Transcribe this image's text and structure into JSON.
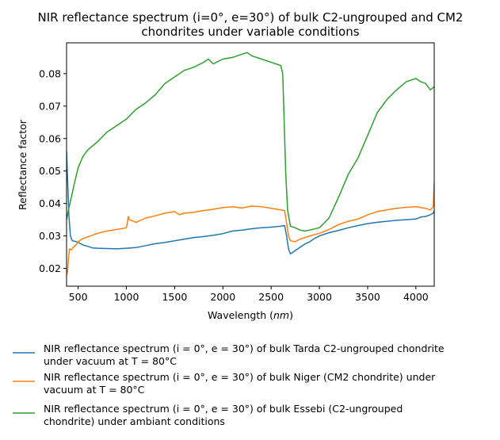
{
  "chart_data": {
    "type": "line",
    "title_lines": [
      "NIR reflectance spectrum (i=0°, e=30°) of bulk C2-ungrouped and CM2",
      "chondrites under variable conditions"
    ],
    "xlabel": "Wavelength",
    "xlabel_unit": "nm",
    "ylabel": "Reflectance factor",
    "xlim": [
      380,
      4190
    ],
    "ylim": [
      0.0145,
      0.0895
    ],
    "xticks": [
      500,
      1000,
      1500,
      2000,
      2500,
      3000,
      3500,
      4000
    ],
    "yticks": [
      0.02,
      0.03,
      0.04,
      0.05,
      0.06,
      0.07,
      0.08
    ],
    "xtick_labels": [
      "500",
      "1000",
      "1500",
      "2000",
      "2500",
      "3000",
      "3500",
      "4000"
    ],
    "ytick_labels": [
      "0.02",
      "0.03",
      "0.04",
      "0.05",
      "0.06",
      "0.07",
      "0.08"
    ],
    "grid": false,
    "legend_position": "below",
    "series": [
      {
        "name_lines": [
          "NIR reflectance spectrum (i = 0°, e = 30°) of bulk Tarda C2-ungrouped chondrite",
          "under vacuum at T = 80°C"
        ],
        "color": "#1f77b4",
        "points": [
          [
            380,
            0.056
          ],
          [
            390,
            0.048
          ],
          [
            405,
            0.036
          ],
          [
            420,
            0.03
          ],
          [
            440,
            0.0285
          ],
          [
            470,
            0.0283
          ],
          [
            500,
            0.028
          ],
          [
            550,
            0.0272
          ],
          [
            600,
            0.0268
          ],
          [
            650,
            0.0263
          ],
          [
            700,
            0.0262
          ],
          [
            800,
            0.0261
          ],
          [
            900,
            0.026
          ],
          [
            1000,
            0.0262
          ],
          [
            1100,
            0.0264
          ],
          [
            1200,
            0.027
          ],
          [
            1300,
            0.0276
          ],
          [
            1400,
            0.028
          ],
          [
            1500,
            0.0285
          ],
          [
            1600,
            0.029
          ],
          [
            1700,
            0.0295
          ],
          [
            1800,
            0.0298
          ],
          [
            1900,
            0.0302
          ],
          [
            2000,
            0.0307
          ],
          [
            2100,
            0.0315
          ],
          [
            2200,
            0.0318
          ],
          [
            2300,
            0.0322
          ],
          [
            2400,
            0.0325
          ],
          [
            2500,
            0.0327
          ],
          [
            2600,
            0.033
          ],
          [
            2640,
            0.0332
          ],
          [
            2660,
            0.03
          ],
          [
            2680,
            0.026
          ],
          [
            2700,
            0.0245
          ],
          [
            2720,
            0.0248
          ],
          [
            2750,
            0.0255
          ],
          [
            2800,
            0.0265
          ],
          [
            2850,
            0.0275
          ],
          [
            2900,
            0.0282
          ],
          [
            2950,
            0.0292
          ],
          [
            3000,
            0.03
          ],
          [
            3100,
            0.031
          ],
          [
            3200,
            0.0317
          ],
          [
            3300,
            0.0325
          ],
          [
            3400,
            0.0332
          ],
          [
            3500,
            0.0338
          ],
          [
            3600,
            0.0342
          ],
          [
            3700,
            0.0345
          ],
          [
            3800,
            0.0348
          ],
          [
            3900,
            0.035
          ],
          [
            4000,
            0.0352
          ],
          [
            4050,
            0.0358
          ],
          [
            4100,
            0.036
          ],
          [
            4150,
            0.0365
          ],
          [
            4180,
            0.037
          ],
          [
            4190,
            0.0378
          ]
        ]
      },
      {
        "name_lines": [
          "NIR reflectance spectrum (i = 0°, e = 30°) of bulk Niger (CM2 chondrite) under",
          "vacuum at T = 80°C"
        ],
        "color": "#ff7f0e",
        "points": [
          [
            380,
            0.018
          ],
          [
            390,
            0.019
          ],
          [
            400,
            0.023
          ],
          [
            410,
            0.026
          ],
          [
            430,
            0.0257
          ],
          [
            450,
            0.0265
          ],
          [
            480,
            0.0273
          ],
          [
            500,
            0.0282
          ],
          [
            550,
            0.0292
          ],
          [
            600,
            0.0297
          ],
          [
            700,
            0.0308
          ],
          [
            800,
            0.0315
          ],
          [
            900,
            0.032
          ],
          [
            950,
            0.0322
          ],
          [
            1000,
            0.0325
          ],
          [
            1010,
            0.034
          ],
          [
            1020,
            0.036
          ],
          [
            1030,
            0.035
          ],
          [
            1100,
            0.0342
          ],
          [
            1200,
            0.0355
          ],
          [
            1300,
            0.0362
          ],
          [
            1400,
            0.037
          ],
          [
            1500,
            0.0375
          ],
          [
            1550,
            0.0365
          ],
          [
            1600,
            0.037
          ],
          [
            1700,
            0.0373
          ],
          [
            1800,
            0.0378
          ],
          [
            1900,
            0.0382
          ],
          [
            2000,
            0.0387
          ],
          [
            2100,
            0.039
          ],
          [
            2200,
            0.0386
          ],
          [
            2300,
            0.0392
          ],
          [
            2400,
            0.039
          ],
          [
            2500,
            0.0385
          ],
          [
            2600,
            0.038
          ],
          [
            2640,
            0.0378
          ],
          [
            2660,
            0.034
          ],
          [
            2680,
            0.03
          ],
          [
            2700,
            0.0285
          ],
          [
            2750,
            0.0282
          ],
          [
            2800,
            0.029
          ],
          [
            2900,
            0.03
          ],
          [
            3000,
            0.0308
          ],
          [
            3100,
            0.032
          ],
          [
            3200,
            0.0335
          ],
          [
            3300,
            0.0345
          ],
          [
            3400,
            0.0352
          ],
          [
            3500,
            0.0365
          ],
          [
            3600,
            0.0375
          ],
          [
            3700,
            0.038
          ],
          [
            3800,
            0.0385
          ],
          [
            3900,
            0.0388
          ],
          [
            4000,
            0.039
          ],
          [
            4100,
            0.0385
          ],
          [
            4150,
            0.038
          ],
          [
            4180,
            0.039
          ],
          [
            4190,
            0.0465
          ]
        ]
      },
      {
        "name_lines": [
          "NIR reflectance spectrum (i = 0°, e = 30°) of bulk Essebi (C2-ungrouped",
          "chondrite) under ambiant conditions"
        ],
        "color": "#2ca02c",
        "points": [
          [
            380,
            0.035
          ],
          [
            400,
            0.038
          ],
          [
            430,
            0.042
          ],
          [
            460,
            0.046
          ],
          [
            500,
            0.051
          ],
          [
            550,
            0.0545
          ],
          [
            600,
            0.0565
          ],
          [
            700,
            0.059
          ],
          [
            800,
            0.062
          ],
          [
            900,
            0.064
          ],
          [
            1000,
            0.066
          ],
          [
            1100,
            0.069
          ],
          [
            1200,
            0.071
          ],
          [
            1300,
            0.0735
          ],
          [
            1400,
            0.077
          ],
          [
            1500,
            0.079
          ],
          [
            1600,
            0.081
          ],
          [
            1700,
            0.082
          ],
          [
            1800,
            0.0835
          ],
          [
            1850,
            0.0845
          ],
          [
            1900,
            0.083
          ],
          [
            2000,
            0.0845
          ],
          [
            2100,
            0.085
          ],
          [
            2200,
            0.086
          ],
          [
            2250,
            0.0865
          ],
          [
            2300,
            0.0855
          ],
          [
            2400,
            0.0845
          ],
          [
            2500,
            0.0835
          ],
          [
            2550,
            0.083
          ],
          [
            2600,
            0.0825
          ],
          [
            2620,
            0.08
          ],
          [
            2650,
            0.05
          ],
          [
            2670,
            0.038
          ],
          [
            2700,
            0.033
          ],
          [
            2750,
            0.0325
          ],
          [
            2800,
            0.0318
          ],
          [
            2850,
            0.0315
          ],
          [
            2900,
            0.0318
          ],
          [
            3000,
            0.0325
          ],
          [
            3100,
            0.0355
          ],
          [
            3200,
            0.042
          ],
          [
            3300,
            0.049
          ],
          [
            3400,
            0.054
          ],
          [
            3500,
            0.061
          ],
          [
            3600,
            0.068
          ],
          [
            3700,
            0.072
          ],
          [
            3800,
            0.075
          ],
          [
            3900,
            0.0775
          ],
          [
            4000,
            0.0785
          ],
          [
            4050,
            0.0775
          ],
          [
            4100,
            0.077
          ],
          [
            4150,
            0.075
          ],
          [
            4190,
            0.076
          ]
        ]
      }
    ]
  }
}
